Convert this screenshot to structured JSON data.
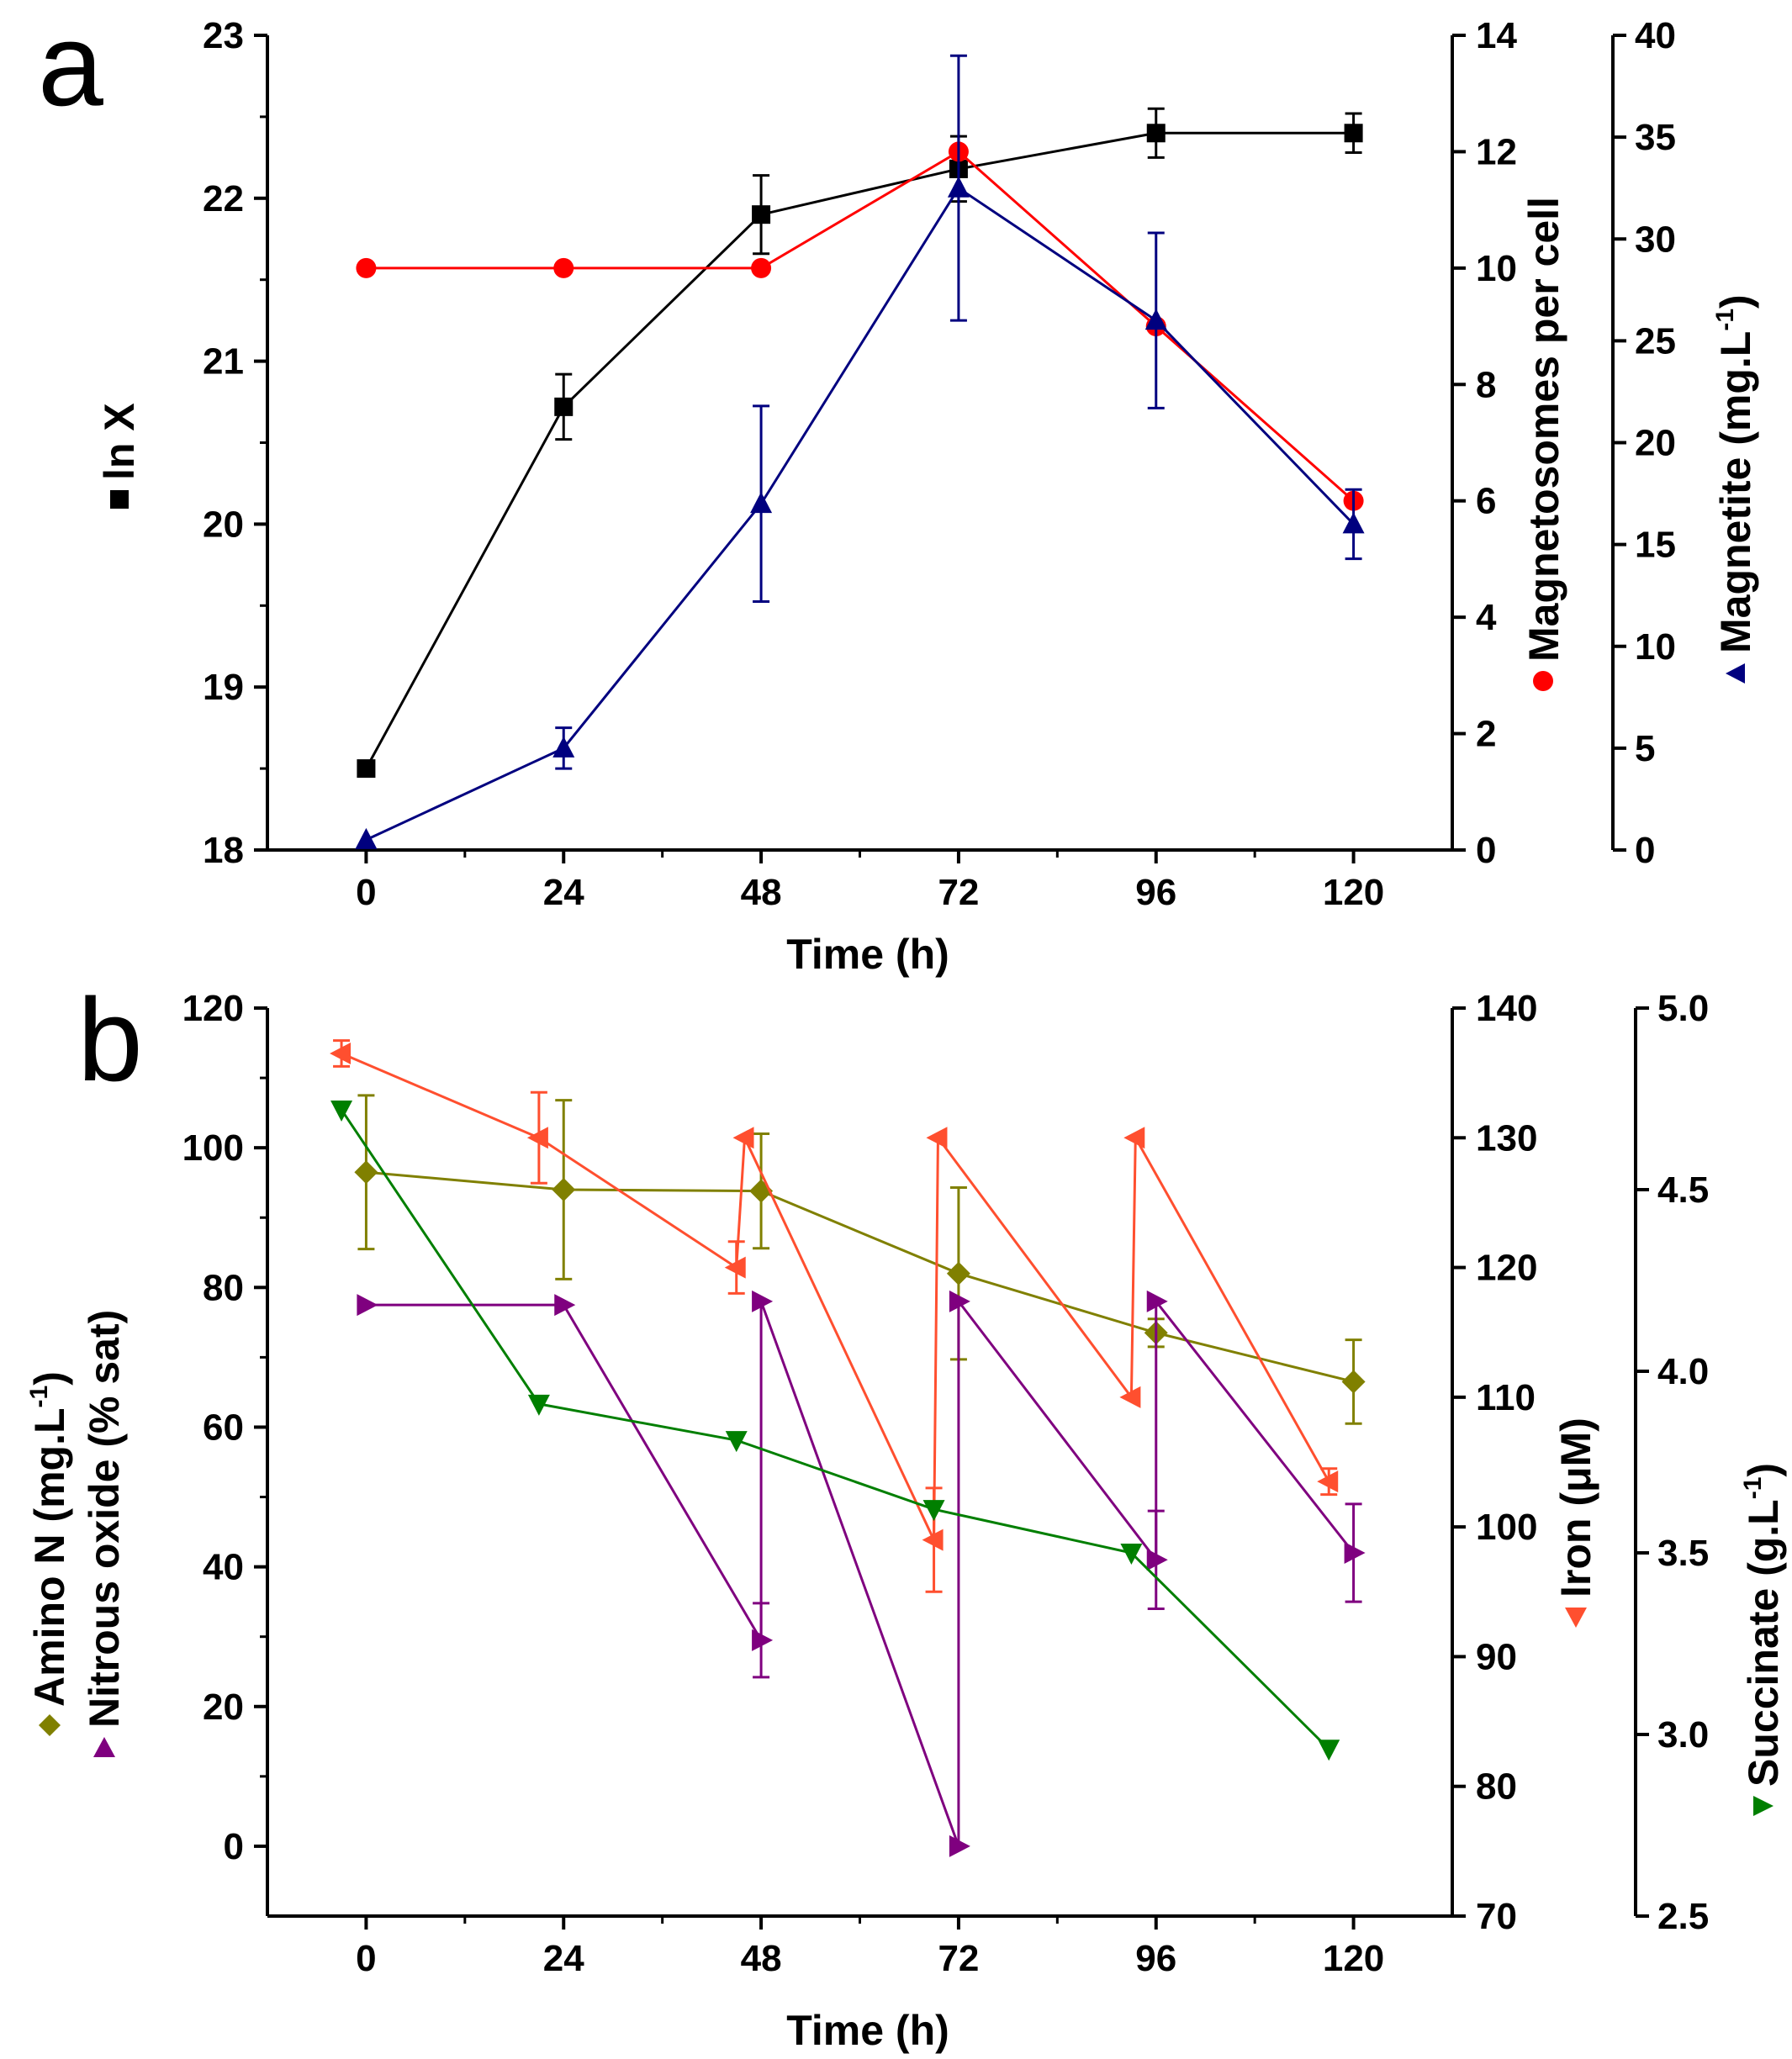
{
  "chart_data": [
    {
      "type": "line",
      "panel_label": "a",
      "xlabel": "Time (h)",
      "x_ticks": [
        0,
        24,
        48,
        72,
        96,
        120
      ],
      "xlim": [
        -12,
        132
      ],
      "axes": {
        "left": {
          "label": "ln X",
          "lim": [
            18,
            23
          ],
          "ticks": [
            18,
            19,
            20,
            21,
            22,
            23
          ]
        },
        "right1": {
          "label": "Magnetosomes per cell",
          "lim": [
            0,
            14
          ],
          "ticks": [
            0,
            2,
            4,
            6,
            8,
            10,
            12,
            14
          ]
        },
        "right2": {
          "label": "Magnetite (mg.L",
          "label_sup": "-1",
          "label_end": ")",
          "lim": [
            0,
            40
          ],
          "ticks": [
            0,
            5,
            10,
            15,
            20,
            25,
            30,
            35,
            40
          ]
        }
      },
      "series": [
        {
          "name": "ln X",
          "axis": "left",
          "color": "#000000",
          "marker": "square",
          "x": [
            0,
            24,
            48,
            72,
            96,
            120
          ],
          "y": [
            18.5,
            20.72,
            21.9,
            22.18,
            22.4,
            22.4
          ],
          "err": [
            0,
            0.2,
            0.24,
            0.2,
            0.15,
            0.12
          ]
        },
        {
          "name": "Magnetosomes per cell",
          "axis": "right1",
          "color": "#ff0000",
          "marker": "circle",
          "x": [
            0,
            24,
            48,
            72,
            96,
            120
          ],
          "y": [
            10,
            10,
            10,
            12,
            9,
            6
          ],
          "err": [
            0,
            0,
            0,
            0,
            0,
            0
          ]
        },
        {
          "name": "Magnetite",
          "axis": "right2",
          "color": "#00007f",
          "marker": "triangle-up",
          "x": [
            0,
            24,
            48,
            72,
            96,
            120
          ],
          "y": [
            0.5,
            5,
            17,
            32.5,
            26,
            16
          ],
          "err": [
            0,
            1,
            4.8,
            6.5,
            4.3,
            1.7
          ]
        }
      ]
    },
    {
      "type": "line",
      "panel_label": "b",
      "xlabel": "Time (h)",
      "x_ticks": [
        0,
        24,
        48,
        72,
        96,
        120
      ],
      "xlim": [
        -12,
        132
      ],
      "axes": {
        "left": {
          "label_line1": "Amino N (mg.L",
          "label_line1_sup": "-1",
          "label_line1_end": ")",
          "label_line2": "Nitrous oxide (% sat)",
          "lim": [
            -10,
            120
          ],
          "ticks": [
            0,
            20,
            40,
            60,
            80,
            100,
            120
          ]
        },
        "right1": {
          "label": "Iron (",
          "label_unit": "μM",
          "label_end": ")",
          "lim": [
            70,
            140
          ],
          "ticks": [
            70,
            80,
            90,
            100,
            110,
            120,
            130,
            140
          ]
        },
        "right2": {
          "label": "Succinate (g.L",
          "label_sup": "-1",
          "label_end": ")",
          "lim": [
            2.5,
            5.0
          ],
          "ticks": [
            "2.5",
            "3.0",
            "3.5",
            "4.0",
            "4.5",
            "5.0"
          ]
        }
      },
      "series": [
        {
          "name": "Amino N",
          "axis": "left",
          "color": "#808000",
          "marker": "diamond",
          "x": [
            0,
            24,
            48,
            72,
            96,
            120
          ],
          "y": [
            96.5,
            94,
            93.8,
            82,
            73.5,
            66.5
          ],
          "err": [
            11,
            12.8,
            8.2,
            12.3,
            2,
            6
          ]
        },
        {
          "name": "Nitrous oxide",
          "axis": "left",
          "color": "#7f007f",
          "marker": "triangle-right",
          "x": [
            0,
            24,
            48,
            48,
            72,
            72,
            96,
            96,
            120
          ],
          "y": [
            77.5,
            77.5,
            29.5,
            78,
            0,
            78,
            41,
            78,
            42
          ],
          "err": [
            0,
            0,
            5.3,
            0,
            0,
            0,
            7,
            0,
            7
          ]
        },
        {
          "name": "Iron",
          "axis": "right1",
          "color": "#ff4f2f",
          "marker": "triangle-left",
          "x": [
            -3,
            21,
            45,
            46,
            69,
            69.5,
            93,
            93.5,
            117
          ],
          "y": [
            136.5,
            130,
            120,
            130,
            99,
            130,
            110,
            130,
            103.5
          ],
          "err": [
            1,
            3.5,
            2,
            0,
            4,
            0,
            0,
            0,
            1
          ]
        },
        {
          "name": "Succinate",
          "axis": "right2",
          "color": "#007f00",
          "marker": "triangle-down",
          "x": [
            -3,
            21,
            45,
            69,
            93,
            117
          ],
          "y": [
            4.72,
            3.91,
            3.81,
            3.62,
            3.5,
            2.96
          ],
          "err": [
            0,
            0,
            0,
            0,
            0,
            0
          ]
        }
      ]
    }
  ]
}
